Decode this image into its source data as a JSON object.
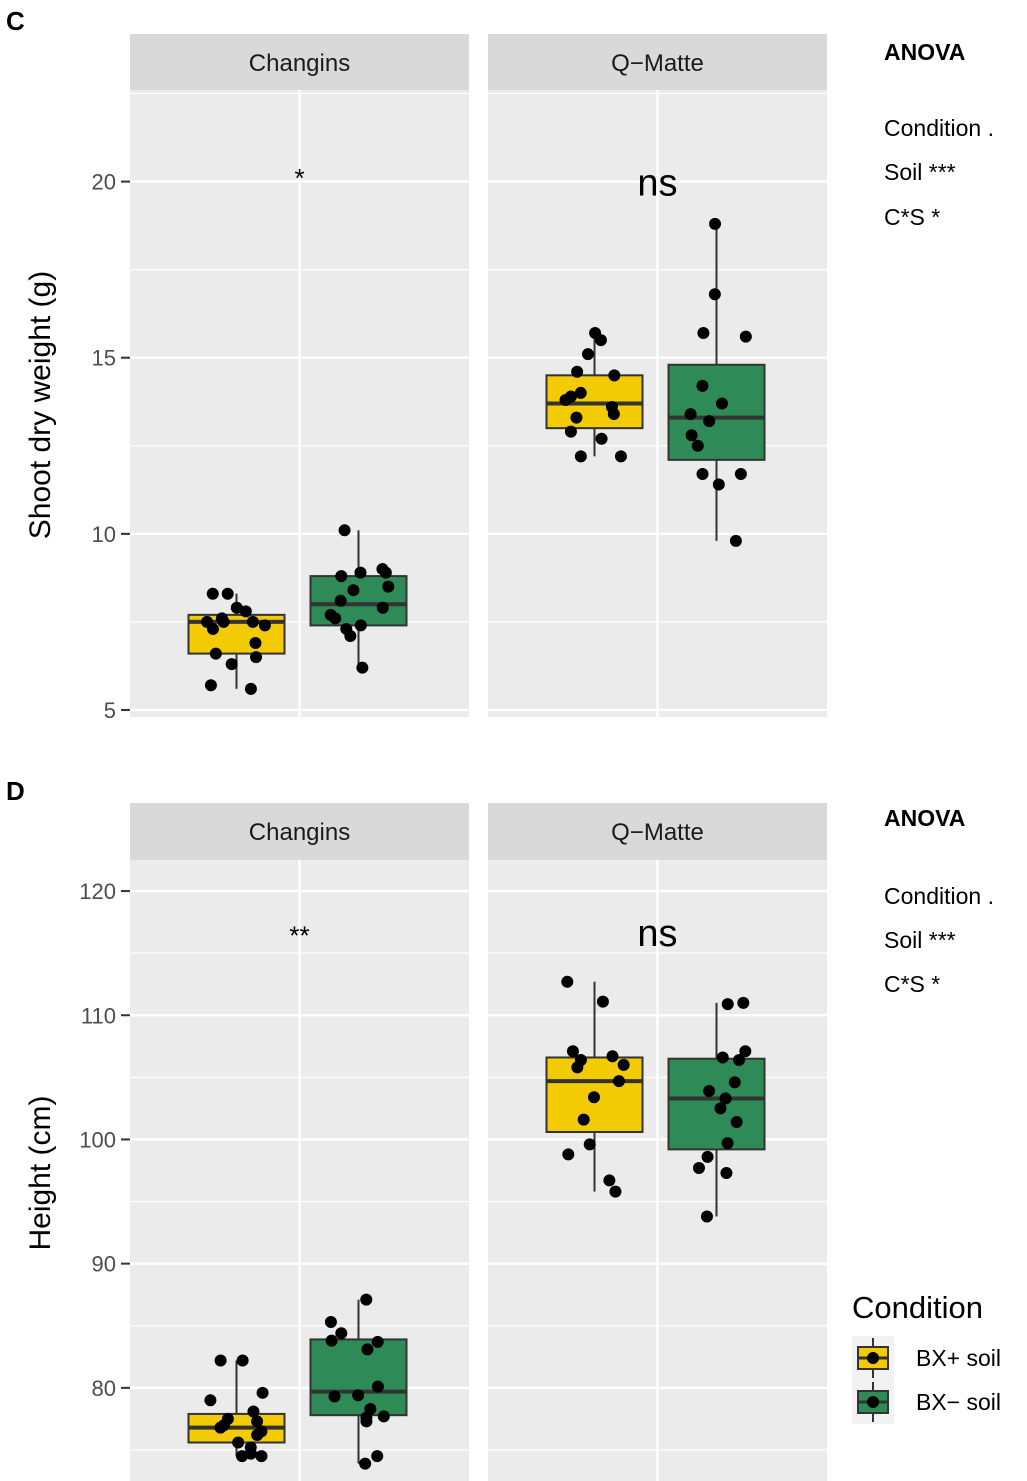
{
  "legend": {
    "title": "Condition",
    "items": [
      {
        "label": "BX+ soil",
        "color": "#F2CB05"
      },
      {
        "label": "BX− soil",
        "color": "#2E8B57"
      }
    ]
  },
  "chart_data": [
    {
      "type": "box",
      "panel_tag": "C",
      "ylabel": "Shoot dry weight (g)",
      "ylim": [
        4.8,
        22.6
      ],
      "yticks": [
        5,
        10,
        15,
        20
      ],
      "ytick_labels": [
        "5",
        "10",
        "15",
        "20"
      ],
      "grid": true,
      "series_colors": {
        "BX+ soil": "#F2CB05",
        "BX− soil": "#2E8B57"
      },
      "facets": [
        {
          "strip": "Changins",
          "annotation": "*",
          "annotation_y": 20.3,
          "annotation_size": "small",
          "boxes": [
            {
              "series": "BX+ soil",
              "min": 5.6,
              "q1": 6.6,
              "median": 7.5,
              "q3": 7.7,
              "max": 8.3,
              "points": [
                5.6,
                5.7,
                6.3,
                6.5,
                6.6,
                6.9,
                7.3,
                7.4,
                7.5,
                7.5,
                7.5,
                7.6,
                7.8,
                7.9,
                8.3,
                8.3
              ]
            },
            {
              "series": "BX− soil",
              "min": 6.2,
              "q1": 7.4,
              "median": 8.0,
              "q3": 8.8,
              "max": 10.1,
              "points": [
                6.2,
                7.1,
                7.3,
                7.4,
                7.6,
                7.7,
                7.9,
                8.1,
                8.4,
                8.5,
                8.8,
                8.9,
                8.9,
                9.0,
                10.1
              ]
            }
          ]
        },
        {
          "strip": "Q−Matte",
          "annotation": "ns",
          "annotation_y": 20.0,
          "annotation_size": "large",
          "boxes": [
            {
              "series": "BX+ soil",
              "min": 12.2,
              "q1": 13.0,
              "median": 13.7,
              "q3": 14.5,
              "max": 15.7,
              "points": [
                12.2,
                12.2,
                12.7,
                12.9,
                13.3,
                13.4,
                13.6,
                13.8,
                13.9,
                14.0,
                14.5,
                14.6,
                15.1,
                15.5,
                15.7
              ]
            },
            {
              "series": "BX− soil",
              "min": 9.8,
              "q1": 12.1,
              "median": 13.3,
              "q3": 14.8,
              "max": 18.8,
              "points": [
                9.8,
                11.4,
                11.7,
                11.7,
                12.5,
                12.8,
                13.2,
                13.4,
                13.7,
                14.2,
                15.6,
                15.7,
                16.8,
                18.8
              ]
            }
          ]
        }
      ],
      "anova": {
        "title": "ANOVA",
        "lines": [
          "Condition .",
          "Soil ***",
          "C*S *"
        ]
      }
    },
    {
      "type": "box",
      "panel_tag": "D",
      "ylabel": "Height (cm)",
      "ylim": [
        72.5,
        122.5
      ],
      "yticks": [
        80,
        90,
        100,
        110,
        120
      ],
      "ytick_labels": [
        "80",
        "90",
        "100",
        "110",
        "120"
      ],
      "grid": true,
      "series_colors": {
        "BX+ soil": "#F2CB05",
        "BX− soil": "#2E8B57"
      },
      "facets": [
        {
          "strip": "Changins",
          "annotation": "**",
          "annotation_y": 117.0,
          "annotation_size": "small",
          "boxes": [
            {
              "series": "BX+ soil",
              "min": 74.5,
              "q1": 75.6,
              "median": 76.8,
              "q3": 77.9,
              "max": 82.2,
              "points": [
                74.5,
                74.5,
                74.7,
                75.2,
                75.6,
                76.2,
                76.5,
                76.8,
                77.0,
                77.3,
                77.5,
                78.1,
                79.0,
                79.6,
                82.2,
                82.2
              ]
            },
            {
              "series": "BX− soil",
              "min": 73.9,
              "q1": 77.8,
              "median": 79.7,
              "q3": 83.9,
              "max": 87.1,
              "points": [
                73.9,
                74.5,
                77.3,
                77.6,
                77.7,
                78.3,
                79.3,
                79.4,
                80.1,
                83.1,
                83.7,
                83.8,
                84.4,
                85.3,
                87.1
              ]
            }
          ]
        },
        {
          "strip": "Q−Matte",
          "annotation": "ns",
          "annotation_y": 116.7,
          "annotation_size": "large",
          "boxes": [
            {
              "series": "BX+ soil",
              "min": 95.8,
              "q1": 100.6,
              "median": 104.7,
              "q3": 106.6,
              "max": 112.7,
              "points": [
                95.8,
                96.7,
                98.8,
                99.6,
                101.6,
                103.4,
                104.7,
                105.8,
                106.0,
                106.4,
                106.7,
                107.1,
                111.1,
                112.7
              ]
            },
            {
              "series": "BX− soil",
              "min": 93.8,
              "q1": 99.2,
              "median": 103.3,
              "q3": 106.5,
              "max": 111.0,
              "points": [
                93.8,
                97.3,
                97.7,
                98.6,
                99.7,
                101.4,
                102.5,
                103.3,
                103.9,
                104.6,
                106.4,
                106.6,
                107.1,
                110.9,
                111.0
              ]
            }
          ]
        }
      ],
      "anova": {
        "title": "ANOVA",
        "lines": [
          "Condition .",
          "Soil ***",
          "C*S *"
        ]
      }
    }
  ]
}
